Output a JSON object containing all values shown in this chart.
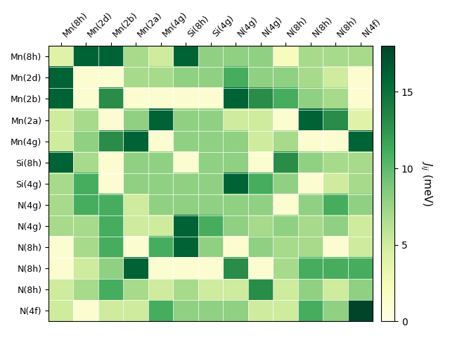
{
  "labels": [
    "Mn(8h)",
    "Mn(2d)",
    "Mn(2b)",
    "Mn(2a)",
    "Mn(4g)",
    "Si(8h)",
    "Si(4g)",
    "N(4g)",
    "N(4g)",
    "N(8h)",
    "N(8h)",
    "N(8h)",
    "N(4f)"
  ],
  "matrix": [
    [
      4,
      16,
      16,
      7,
      5,
      16,
      8,
      8,
      8,
      2,
      7,
      7,
      7
    ],
    [
      16,
      1,
      1,
      7,
      7,
      8,
      8,
      11,
      8,
      8,
      7,
      5,
      1
    ],
    [
      16,
      1,
      13,
      1,
      1,
      1,
      1,
      16,
      13,
      11,
      8,
      7,
      1
    ],
    [
      5,
      7,
      1,
      8,
      16,
      8,
      8,
      5,
      5,
      1,
      16,
      13,
      4
    ],
    [
      5,
      8,
      13,
      16,
      1,
      8,
      8,
      8,
      5,
      7,
      1,
      1,
      16
    ],
    [
      16,
      7,
      1,
      8,
      8,
      1,
      8,
      8,
      1,
      13,
      8,
      7,
      7
    ],
    [
      7,
      11,
      1,
      8,
      8,
      8,
      8,
      16,
      11,
      8,
      1,
      5,
      7
    ],
    [
      7,
      11,
      11,
      5,
      8,
      8,
      8,
      8,
      8,
      1,
      8,
      11,
      8
    ],
    [
      7,
      7,
      11,
      5,
      5,
      16,
      11,
      8,
      7,
      8,
      7,
      8,
      5
    ],
    [
      1,
      7,
      11,
      1,
      11,
      16,
      8,
      1,
      8,
      7,
      7,
      1,
      5
    ],
    [
      1,
      5,
      8,
      16,
      1,
      1,
      1,
      13,
      1,
      7,
      11,
      11,
      11
    ],
    [
      5,
      7,
      11,
      7,
      5,
      7,
      5,
      5,
      13,
      5,
      8,
      5,
      8
    ],
    [
      5,
      1,
      5,
      5,
      11,
      8,
      8,
      8,
      5,
      5,
      11,
      8,
      18
    ]
  ],
  "vmin": 0,
  "vmax": 18,
  "colorbar_ticks": [
    0,
    5,
    10,
    15
  ],
  "colorbar_label": "$J_{ij}$ (meV)",
  "cmap": "YlGn",
  "figsize": [
    6.4,
    4.8
  ],
  "dpi": 100
}
